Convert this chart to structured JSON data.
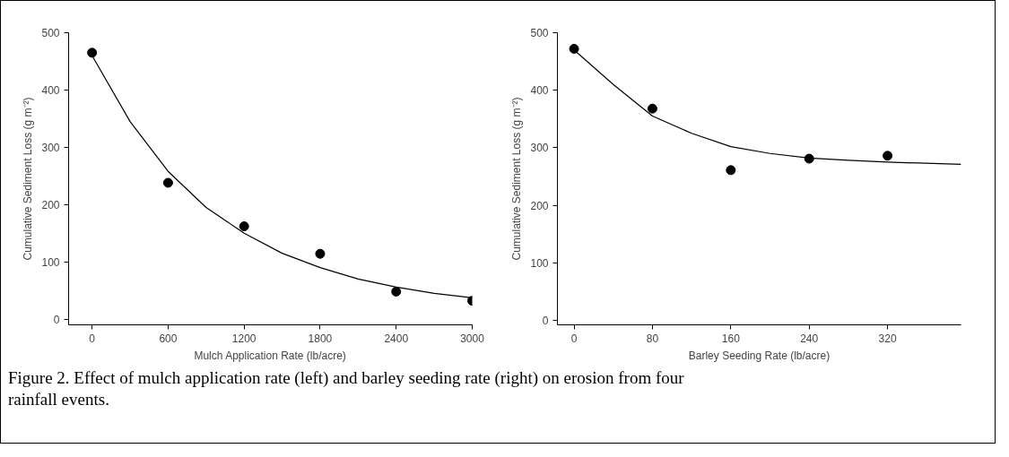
{
  "chart_data": [
    {
      "type": "scatter",
      "xlabel": "Mulch Application Rate (lb/acre)",
      "ylabel": "Cumulative Sediment Loss (g m⁻²)",
      "xlim": [
        -185,
        3000
      ],
      "ylim": [
        -10,
        500
      ],
      "xticks": [
        0,
        600,
        1200,
        1800,
        2400,
        3000
      ],
      "yticks": [
        0,
        100,
        200,
        300,
        400,
        500
      ],
      "annotations": [
        "Figure 2. Effect of mulch application rate (left) and barley seeding rate (right) on erosion from four rainfall events."
      ],
      "series": [
        {
          "color": "#000000",
          "marker": "circle",
          "x": [
            0,
            600,
            1200,
            1800,
            2400,
            3000
          ],
          "values": [
            465,
            238,
            162,
            114,
            48,
            32
          ]
        },
        {
          "type": "line",
          "color": "#000000",
          "x": [
            0,
            300,
            600,
            900,
            1200,
            1500,
            1800,
            2100,
            2400,
            2700,
            3000
          ],
          "values": [
            460,
            345,
            258,
            195,
            150,
            115,
            90,
            70,
            56,
            45,
            37
          ]
        }
      ]
    },
    {
      "type": "scatter",
      "xlabel": "Barley Seeding Rate (lb/acre)",
      "ylabel": "Cumulative Sediment Loss (g m⁻²)",
      "xlim": [
        -17,
        395
      ],
      "ylim": [
        -8,
        500
      ],
      "xticks": [
        0,
        80,
        160,
        240,
        320
      ],
      "yticks": [
        0,
        100,
        200,
        300,
        400,
        500
      ],
      "series": [
        {
          "color": "#000000",
          "marker": "circle",
          "x": [
            0,
            80,
            160,
            240,
            320
          ],
          "values": [
            472,
            368,
            261,
            281,
            286
          ]
        },
        {
          "type": "line",
          "color": "#000000",
          "x": [
            0,
            40,
            80,
            120,
            160,
            200,
            240,
            280,
            320,
            395
          ],
          "values": [
            470,
            410,
            355,
            325,
            302,
            290,
            282,
            278,
            275,
            271
          ]
        }
      ]
    }
  ]
}
